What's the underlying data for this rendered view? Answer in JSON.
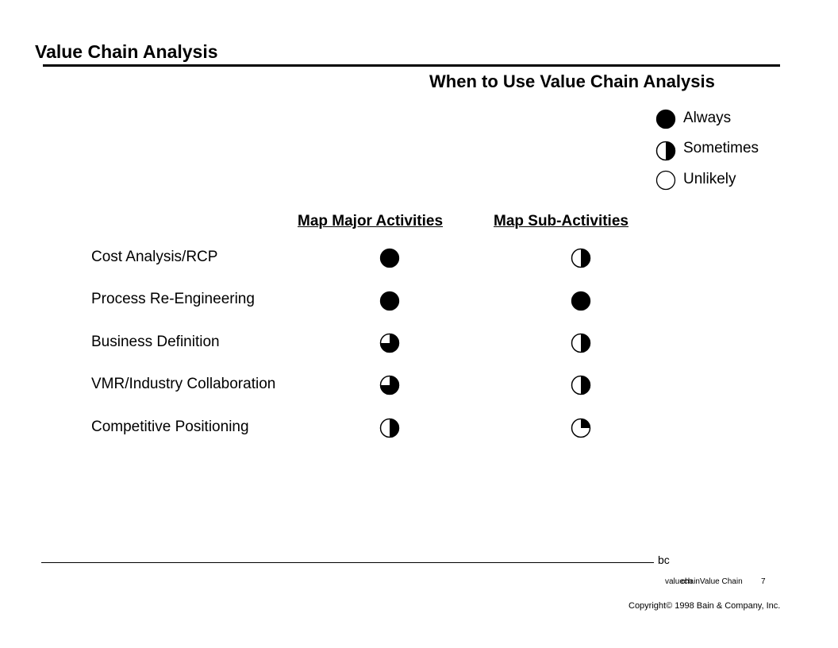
{
  "header": {
    "title": "Value Chain Analysis",
    "subtitle": "When to Use Value Chain Analysis"
  },
  "legend": [
    {
      "label": "Always",
      "fill": 1.0
    },
    {
      "label": "Sometimes",
      "fill": 0.5
    },
    {
      "label": "Unlikely",
      "fill": 0.0
    }
  ],
  "table": {
    "columns": [
      "Map Major Activities",
      "Map Sub-Activities"
    ],
    "rows": [
      {
        "label": "Cost Analysis/RCP",
        "major": 1.0,
        "sub": 0.5
      },
      {
        "label": "Process Re-Engineering",
        "major": 1.0,
        "sub": 1.0
      },
      {
        "label": "Business Definition",
        "major": 0.75,
        "sub": 0.5
      },
      {
        "label": "VMR/Industry Collaboration",
        "major": 0.75,
        "sub": 0.5
      },
      {
        "label": "Competitive Positioning",
        "major": 0.5,
        "sub": 0.25
      }
    ]
  },
  "footer": {
    "code": "bc",
    "ref_a": "valuech",
    "ref_b": "chainValue Chain",
    "page": "7",
    "copyright": "Copyright© 1998 Bain & Company, Inc."
  },
  "colors": {
    "ink": "#000000",
    "background": "#ffffff"
  }
}
